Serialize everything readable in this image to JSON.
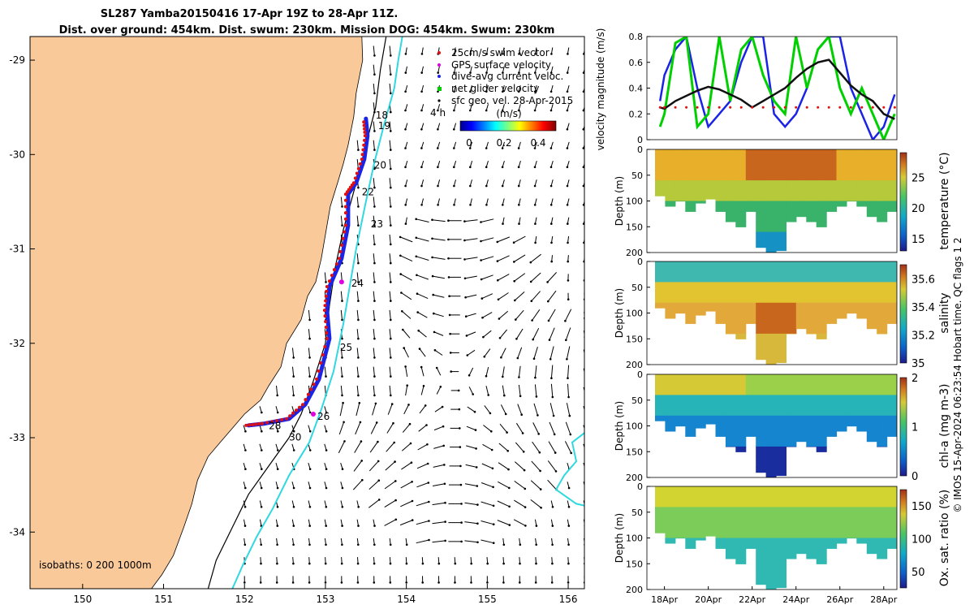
{
  "title": {
    "line1": "SL287 Yamba20150416 17-Apr 19Z to 28-Apr 11Z.",
    "line2": "Dist. over ground: 454km. Dist. swum: 230km. Mission DOG: 454km. Swum: 230km"
  },
  "credit": "© IMOS 15-Apr-2024 06:23:54 Hobart time. QC flags 1  2",
  "colors": {
    "land": "#f9c99a",
    "track": "#1a23e6",
    "swim_vector": "#e01010",
    "gps": "#e000e0",
    "net": "#00d000",
    "isobath_200": "#000000",
    "isobath_1000": "#30d8e0"
  },
  "chart_data": [
    {
      "type": "map",
      "name": "glider-track-map",
      "xticks": [
        "150",
        "151",
        "152",
        "153",
        "154",
        "155",
        "156"
      ],
      "yticks": [
        "-29",
        "-30",
        "-31",
        "-32",
        "-33",
        "-34"
      ],
      "xlim": [
        149.35,
        156.2
      ],
      "ylim": [
        -34.6,
        -28.75
      ],
      "legend": {
        "placement": "top-right",
        "entries": [
          {
            "label": "25cm/s swim vector",
            "color": "#e01010",
            "marker": "dot"
          },
          {
            "label": "GPS surface velocity",
            "color": "#e000e0",
            "marker": "dot"
          },
          {
            "label": "dive-avg current veloc.",
            "color": "#1a23e6",
            "marker": "dot"
          },
          {
            "label": "net glider velocity",
            "color": "#00d000",
            "marker": "square"
          },
          {
            "label": "sfc geo. vel. 28-Apr-2015",
            "color": "#000000",
            "marker": "dot"
          }
        ]
      },
      "colorbar": {
        "label": "(m/s)",
        "ticks": [
          "0",
          "0.2",
          "0.4"
        ],
        "range": [
          0,
          0.5
        ]
      },
      "legend_tag": "4 h",
      "isobaths_label": "isobaths: 0   200  1000m",
      "day_labels": [
        {
          "text": "18",
          "lon": 153.62,
          "lat": -29.62
        },
        {
          "text": "19",
          "lon": 153.65,
          "lat": -29.73
        },
        {
          "text": "20",
          "lon": 153.6,
          "lat": -30.15
        },
        {
          "text": "22",
          "lon": 153.45,
          "lat": -30.43
        },
        {
          "text": "23",
          "lon": 153.56,
          "lat": -30.77
        },
        {
          "text": "24",
          "lon": 153.32,
          "lat": -31.4
        },
        {
          "text": "25",
          "lon": 153.18,
          "lat": -32.08
        },
        {
          "text": "26",
          "lon": 152.9,
          "lat": -32.81
        },
        {
          "text": "28",
          "lon": 152.3,
          "lat": -32.91
        },
        {
          "text": "30",
          "lon": 152.55,
          "lat": -33.03
        }
      ],
      "track": [
        [
          152.05,
          -32.87
        ],
        [
          152.25,
          -32.85
        ],
        [
          152.55,
          -32.8
        ],
        [
          152.75,
          -32.65
        ],
        [
          152.92,
          -32.38
        ],
        [
          153.05,
          -31.95
        ],
        [
          153.02,
          -31.65
        ],
        [
          153.05,
          -31.4
        ],
        [
          153.2,
          -31.1
        ],
        [
          153.28,
          -30.75
        ],
        [
          153.28,
          -30.42
        ],
        [
          153.38,
          -30.3
        ],
        [
          153.48,
          -30.05
        ],
        [
          153.52,
          -29.8
        ],
        [
          153.5,
          -29.62
        ]
      ]
    },
    {
      "type": "line",
      "name": "velocity-magnitude",
      "ylabel": "velocity magnitude (m/s)",
      "ylim": [
        0,
        0.8
      ],
      "yticks": [
        "0",
        "0.2",
        "0.4",
        "0.6",
        "0.8"
      ],
      "x": [
        17.8,
        18.0,
        18.5,
        19.0,
        19.5,
        20.0,
        20.5,
        21.0,
        21.5,
        22.0,
        22.5,
        23.0,
        23.5,
        24.0,
        24.5,
        25.0,
        25.5,
        26.0,
        26.5,
        27.0,
        27.5,
        28.0,
        28.5
      ],
      "series": [
        {
          "values": [
            0.3,
            0.5,
            0.7,
            0.8,
            0.4,
            0.1,
            0.2,
            0.3,
            0.6,
            0.8,
            0.8,
            0.2,
            0.1,
            0.2,
            0.4,
            0.7,
            0.8,
            0.8,
            0.4,
            0.2,
            0.0,
            0.1,
            0.35
          ],
          "color": "#1a23e6"
        },
        {
          "values": [
            0.1,
            0.2,
            0.75,
            0.8,
            0.1,
            0.2,
            0.8,
            0.3,
            0.7,
            0.8,
            0.5,
            0.3,
            0.2,
            0.8,
            0.4,
            0.7,
            0.8,
            0.4,
            0.2,
            0.4,
            0.2,
            0.0,
            0.2
          ],
          "color": "#00d000"
        },
        {
          "values": [
            0.25,
            0.24,
            0.3,
            0.34,
            0.38,
            0.41,
            0.39,
            0.35,
            0.31,
            0.25,
            0.3,
            0.35,
            0.4,
            0.48,
            0.55,
            0.6,
            0.62,
            0.52,
            0.42,
            0.35,
            0.3,
            0.2,
            0.16
          ],
          "color": "#111111"
        },
        {
          "values": [
            0.25,
            0.25,
            0.25,
            0.25,
            0.25,
            0.25,
            0.25,
            0.25,
            0.25,
            0.25,
            0.25,
            0.25,
            0.25,
            0.25,
            0.25,
            0.25,
            0.25,
            0.25,
            0.25,
            0.25,
            0.25,
            0.25,
            0.25
          ],
          "color": "#e01010"
        }
      ]
    },
    {
      "type": "heatmap",
      "name": "temperature-section",
      "ylabel": "Depth (m)",
      "yticks": [
        "0",
        "50",
        "100",
        "150",
        "200"
      ],
      "ylim": [
        0,
        200
      ],
      "colorbar": {
        "label": "temperature (°C)",
        "ticks": [
          "15",
          "20",
          "25"
        ],
        "range": [
          13,
          29
        ]
      }
    },
    {
      "type": "heatmap",
      "name": "salinity-section",
      "ylabel": "Depth (m)",
      "yticks": [
        "0",
        "50",
        "100",
        "150",
        "200"
      ],
      "ylim": [
        0,
        200
      ],
      "colorbar": {
        "label": "salinity",
        "ticks": [
          "35",
          "35.2",
          "35.4",
          "35.6"
        ],
        "range": [
          35,
          35.7
        ]
      }
    },
    {
      "type": "heatmap",
      "name": "chla-section",
      "ylabel": "Depth (m)",
      "yticks": [
        "0",
        "50",
        "100",
        "150",
        "200"
      ],
      "ylim": [
        0,
        200
      ],
      "colorbar": {
        "label": "chl-a (mg m-3)",
        "ticks": [
          "0",
          "1",
          "2"
        ],
        "range": [
          0,
          2
        ]
      }
    },
    {
      "type": "heatmap",
      "name": "oxygen-section",
      "ylabel": "Depth (m)",
      "yticks": [
        "0",
        "50",
        "100",
        "150",
        "200"
      ],
      "ylim": [
        0,
        200
      ],
      "colorbar": {
        "label": "Ox. sat. ratio (%)",
        "ticks": [
          "50",
          "100",
          "150"
        ],
        "range": [
          25,
          175
        ]
      },
      "xticks": [
        "18Apr",
        "20Apr",
        "22Apr",
        "24Apr",
        "26Apr",
        "28Apr"
      ]
    }
  ]
}
